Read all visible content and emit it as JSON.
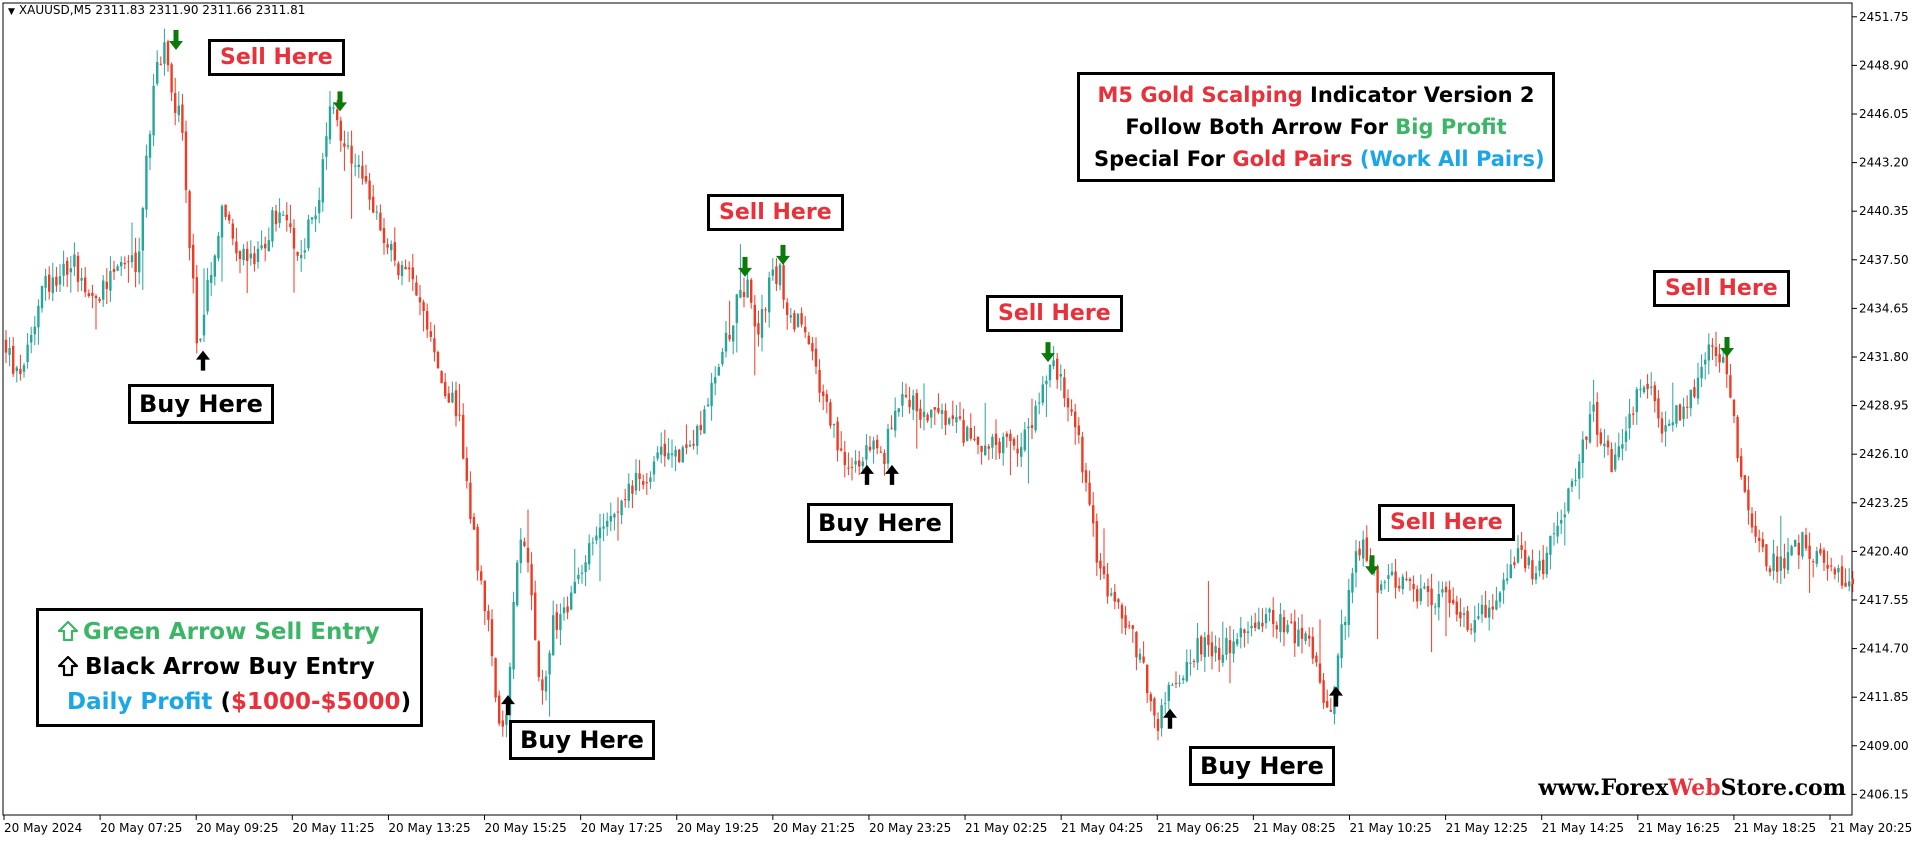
{
  "header": {
    "symbol": "XAUUSD,M5",
    "ohlc": "2311.83 2311.90 2311.66 2311.81"
  },
  "title_box": {
    "line1": {
      "a": "M5 Gold Scalping",
      "b": " Indicator Version 2"
    },
    "line2": {
      "a": "Follow Both Arrow For ",
      "b": "Big Profit"
    },
    "line3": {
      "a": "Special For ",
      "b": "Gold Pairs",
      "c": " (Work All Pairs)"
    }
  },
  "legend": {
    "green_arrow": "Green Arrow Sell Entry",
    "black_arrow": "Black Arrow Buy Entry",
    "profit_prefix": "Daily Profit",
    "profit_open": " (",
    "profit_value": "$1000-$5000",
    "profit_close": ")"
  },
  "labels": {
    "sell": "Sell Here",
    "buy": "Buy Here"
  },
  "website": {
    "a": "www.Forex",
    "b": "Web",
    "c": "Store.com"
  },
  "colors": {
    "bull": "#26a69a",
    "bear": "#ef3a24",
    "sell_arrow": "#0a7a0a",
    "buy_arrow": "#000000",
    "accent_red": "#e8313a",
    "accent_green": "#3cb567",
    "accent_blue": "#1da6e6"
  },
  "chart_data": {
    "type": "candlestick",
    "symbol": "XAUUSD",
    "timeframe": "M5",
    "ylim": [
      2405.0,
      2452.5
    ],
    "y_ticks": [
      2451.75,
      2448.9,
      2446.05,
      2443.2,
      2440.35,
      2437.5,
      2434.65,
      2431.8,
      2428.95,
      2426.1,
      2423.25,
      2420.4,
      2417.55,
      2414.7,
      2411.85,
      2409.0,
      2406.15
    ],
    "x_ticks": [
      "20 May 2024",
      "20 May 07:25",
      "20 May 09:25",
      "20 May 11:25",
      "20 May 13:25",
      "20 May 15:25",
      "20 May 17:25",
      "20 May 19:25",
      "20 May 21:25",
      "20 May 23:25",
      "21 May 02:25",
      "21 May 04:25",
      "21 May 06:25",
      "21 May 08:25",
      "21 May 10:25",
      "21 May 12:25",
      "21 May 14:25",
      "21 May 16:25",
      "21 May 18:25",
      "21 May 20:25"
    ],
    "price_path": [
      [
        0,
        2433.5
      ],
      [
        20,
        2430.5
      ],
      [
        45,
        2436.0
      ],
      [
        75,
        2437.5
      ],
      [
        95,
        2435.0
      ],
      [
        120,
        2437.5
      ],
      [
        140,
        2437.0
      ],
      [
        150,
        2444.5
      ],
      [
        158,
        2448.5
      ],
      [
        167,
        2449.8
      ],
      [
        175,
        2447.0
      ],
      [
        183,
        2446.0
      ],
      [
        190,
        2440.0
      ],
      [
        200,
        2432.0
      ],
      [
        212,
        2437.0
      ],
      [
        225,
        2440.5
      ],
      [
        245,
        2437.5
      ],
      [
        262,
        2437.5
      ],
      [
        275,
        2440.0
      ],
      [
        285,
        2440.0
      ],
      [
        300,
        2437.5
      ],
      [
        320,
        2441.0
      ],
      [
        328,
        2445.0
      ],
      [
        336,
        2447.0
      ],
      [
        345,
        2444.0
      ],
      [
        360,
        2442.5
      ],
      [
        380,
        2440.0
      ],
      [
        395,
        2437.5
      ],
      [
        420,
        2436.0
      ],
      [
        440,
        2431.0
      ],
      [
        460,
        2428.5
      ],
      [
        470,
        2424.0
      ],
      [
        480,
        2419.0
      ],
      [
        488,
        2416.5
      ],
      [
        495,
        2414.0
      ],
      [
        502,
        2409.0
      ],
      [
        510,
        2411.0
      ],
      [
        518,
        2420.0
      ],
      [
        525,
        2422.0
      ],
      [
        532,
        2418.0
      ],
      [
        540,
        2413.0
      ],
      [
        545,
        2412.0
      ],
      [
        555,
        2416.0
      ],
      [
        580,
        2418.5
      ],
      [
        605,
        2422.5
      ],
      [
        640,
        2424.5
      ],
      [
        670,
        2426.5
      ],
      [
        690,
        2426.0
      ],
      [
        705,
        2428.5
      ],
      [
        725,
        2432.0
      ],
      [
        738,
        2435.0
      ],
      [
        750,
        2436.5
      ],
      [
        758,
        2433.0
      ],
      [
        772,
        2436.0
      ],
      [
        782,
        2437.0
      ],
      [
        790,
        2434.0
      ],
      [
        800,
        2434.0
      ],
      [
        815,
        2431.5
      ],
      [
        830,
        2428.5
      ],
      [
        842,
        2426.5
      ],
      [
        852,
        2425.0
      ],
      [
        862,
        2425.5
      ],
      [
        875,
        2427.0
      ],
      [
        885,
        2425.5
      ],
      [
        895,
        2428.5
      ],
      [
        905,
        2430.0
      ],
      [
        915,
        2429.0
      ],
      [
        930,
        2428.5
      ],
      [
        950,
        2428.0
      ],
      [
        975,
        2427.0
      ],
      [
        995,
        2426.5
      ],
      [
        1010,
        2427.0
      ],
      [
        1022,
        2426.0
      ],
      [
        1032,
        2428.0
      ],
      [
        1044,
        2430.0
      ],
      [
        1052,
        2431.5
      ],
      [
        1058,
        2431.0
      ],
      [
        1066,
        2430.0
      ],
      [
        1075,
        2428.0
      ],
      [
        1082,
        2426.5
      ],
      [
        1090,
        2423.0
      ],
      [
        1100,
        2420.0
      ],
      [
        1112,
        2418.0
      ],
      [
        1130,
        2416.0
      ],
      [
        1145,
        2413.5
      ],
      [
        1158,
        2410.0
      ],
      [
        1165,
        2411.5
      ],
      [
        1180,
        2413.0
      ],
      [
        1200,
        2415.0
      ],
      [
        1225,
        2414.5
      ],
      [
        1250,
        2415.5
      ],
      [
        1275,
        2416.5
      ],
      [
        1300,
        2415.5
      ],
      [
        1320,
        2414.0
      ],
      [
        1330,
        2410.5
      ],
      [
        1342,
        2415.0
      ],
      [
        1355,
        2419.5
      ],
      [
        1365,
        2420.5
      ],
      [
        1378,
        2418.5
      ],
      [
        1390,
        2419.0
      ],
      [
        1410,
        2418.0
      ],
      [
        1435,
        2417.5
      ],
      [
        1455,
        2417.5
      ],
      [
        1475,
        2416.0
      ],
      [
        1500,
        2418.0
      ],
      [
        1520,
        2420.0
      ],
      [
        1540,
        2419.0
      ],
      [
        1560,
        2422.0
      ],
      [
        1580,
        2425.5
      ],
      [
        1595,
        2428.5
      ],
      [
        1615,
        2425.5
      ],
      [
        1635,
        2429.0
      ],
      [
        1652,
        2430.0
      ],
      [
        1665,
        2427.5
      ],
      [
        1680,
        2428.5
      ],
      [
        1700,
        2430.5
      ],
      [
        1715,
        2432.5
      ],
      [
        1722,
        2432.0
      ],
      [
        1732,
        2430.0
      ],
      [
        1742,
        2425.0
      ],
      [
        1755,
        2421.5
      ],
      [
        1768,
        2419.5
      ],
      [
        1790,
        2420.0
      ],
      [
        1805,
        2421.0
      ],
      [
        1820,
        2420.0
      ],
      [
        1835,
        2419.0
      ],
      [
        1852,
        2418.5
      ],
      [
        1855,
        2419.0
      ]
    ],
    "sell_signals": [
      [
        176,
        2449.8
      ],
      [
        340,
        2446.2
      ],
      [
        745,
        2436.5
      ],
      [
        783,
        2437.2
      ],
      [
        1048,
        2431.5
      ],
      [
        1372,
        2419.0
      ],
      [
        1727,
        2431.8
      ]
    ],
    "buy_signals": [
      [
        203,
        2431.0
      ],
      [
        508,
        2410.8
      ],
      [
        867,
        2424.3
      ],
      [
        892,
        2424.3
      ],
      [
        1170,
        2410.0
      ],
      [
        1336,
        2411.3
      ]
    ]
  }
}
